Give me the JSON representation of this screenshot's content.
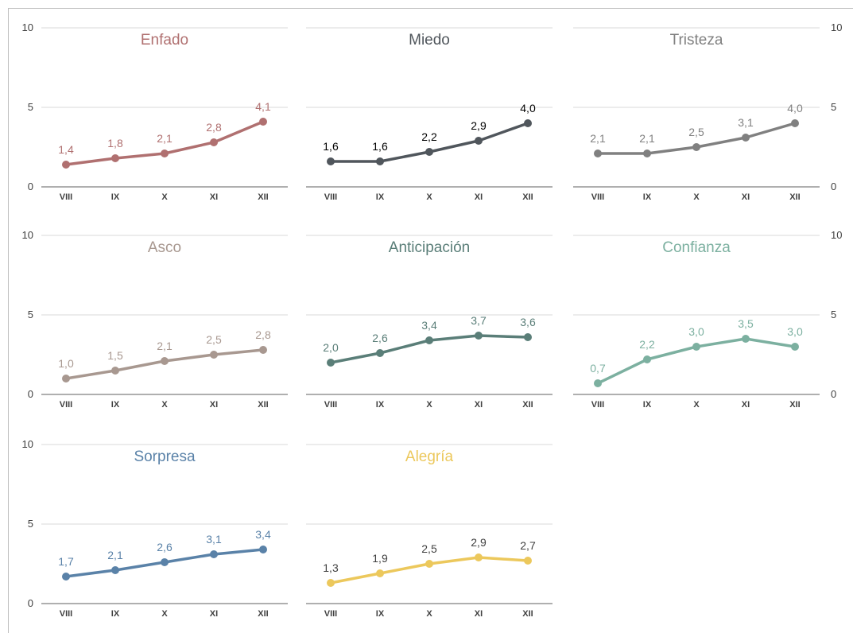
{
  "chart_data": {
    "type": "line",
    "categories": [
      "VIII",
      "IX",
      "X",
      "XI",
      "XII"
    ],
    "ylim": [
      0,
      10
    ],
    "yticks": [
      "0",
      "5",
      "10"
    ],
    "grid": true,
    "panels": [
      {
        "title": "Enfado",
        "color": "#b07070",
        "labelColor": "#b07070",
        "values": [
          1.4,
          1.8,
          2.1,
          2.8,
          4.1
        ],
        "labels": [
          "1,4",
          "1,8",
          "2,1",
          "2,8",
          "4,1"
        ]
      },
      {
        "title": "Miedo",
        "color": "#50565c",
        "labelColor": "#000000",
        "values": [
          1.6,
          1.6,
          2.2,
          2.9,
          4.0
        ],
        "labels": [
          "1,6",
          "1,6",
          "2,2",
          "2,9",
          "4,0"
        ]
      },
      {
        "title": "Tristeza",
        "color": "#808080",
        "labelColor": "#808080",
        "values": [
          2.1,
          2.1,
          2.5,
          3.1,
          4.0
        ],
        "labels": [
          "2,1",
          "2,1",
          "2,5",
          "3,1",
          "4,0"
        ]
      },
      {
        "title": "Asco",
        "color": "#a89890",
        "labelColor": "#a89890",
        "values": [
          1.0,
          1.5,
          2.1,
          2.5,
          2.8
        ],
        "labels": [
          "1,0",
          "1,5",
          "2,1",
          "2,5",
          "2,8"
        ]
      },
      {
        "title": "Anticipación",
        "color": "#5a7e78",
        "labelColor": "#5a7e78",
        "values": [
          2.0,
          2.6,
          3.4,
          3.7,
          3.6
        ],
        "labels": [
          "2,0",
          "2,6",
          "3,4",
          "3,7",
          "3,6"
        ]
      },
      {
        "title": "Confianza",
        "color": "#7cb0a0",
        "labelColor": "#7cb0a0",
        "values": [
          0.7,
          2.2,
          3.0,
          3.5,
          3.0
        ],
        "labels": [
          "0,7",
          "2,2",
          "3,0",
          "3,5",
          "3,0"
        ]
      },
      {
        "title": "Sorpresa",
        "color": "#5a82a8",
        "labelColor": "#5a82a8",
        "values": [
          1.7,
          2.1,
          2.6,
          3.1,
          3.4
        ],
        "labels": [
          "1,7",
          "2,1",
          "2,6",
          "3,1",
          "3,4"
        ]
      },
      {
        "title": "Alegría",
        "color": "#ecc85c",
        "labelColor": "#404040",
        "values": [
          1.3,
          1.9,
          2.5,
          2.9,
          2.7
        ],
        "labels": [
          "1,3",
          "1,9",
          "2,5",
          "2,9",
          "2,7"
        ]
      }
    ]
  }
}
